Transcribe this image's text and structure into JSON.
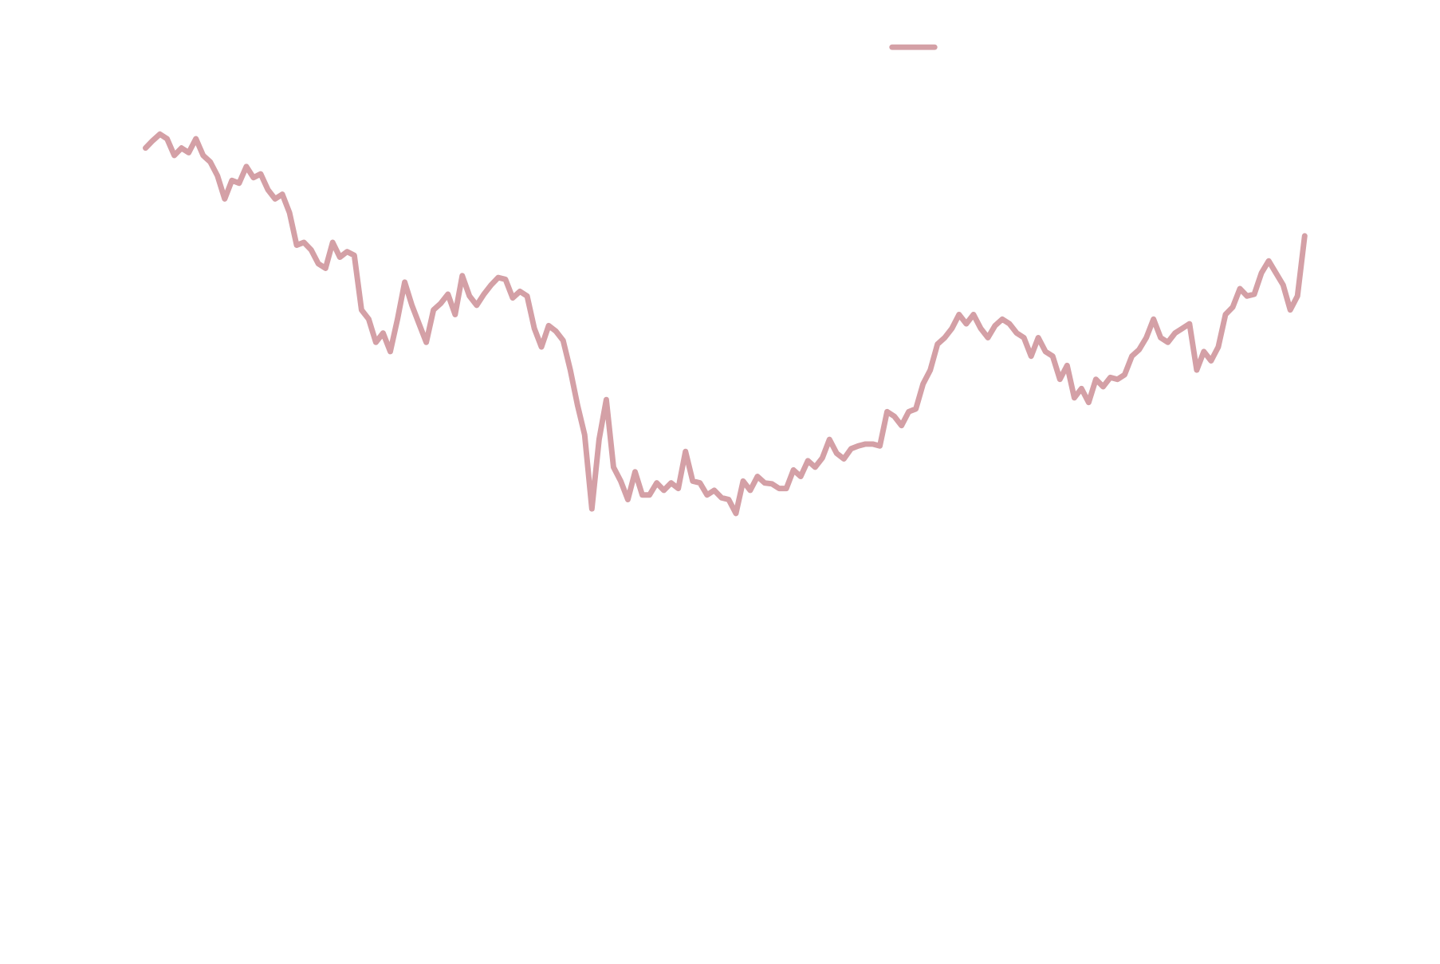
{
  "chart_data": {
    "type": "line",
    "color": "#d4a0a6",
    "ylim": [
      0,
      100
    ],
    "legend": "top",
    "values": [
      84,
      84.8,
      85.5,
      85,
      83.2,
      84,
      83.5,
      85,
      83.2,
      82.5,
      81,
      78.5,
      80.5,
      80.2,
      82,
      80.8,
      81.2,
      79.5,
      78.5,
      79,
      77,
      73.5,
      73.8,
      73,
      71.5,
      71,
      73.8,
      72.2,
      72.8,
      72.4,
      66.5,
      65.5,
      63,
      64,
      62,
      65.5,
      69.5,
      67,
      65,
      63,
      66.5,
      67.2,
      68.2,
      66,
      70.2,
      68,
      67,
      68.2,
      69.2,
      70,
      69.8,
      67.8,
      68.5,
      68,
      64.5,
      62.5,
      64.8,
      64.2,
      63.2,
      60,
      56.2,
      53,
      45,
      52.5,
      56.8,
      49.5,
      48,
      46,
      49,
      46.5,
      46.5,
      47.8,
      47,
      47.8,
      47.2,
      51.2,
      48,
      47.8,
      46.5,
      47,
      46.2,
      46,
      44.5,
      48,
      47,
      48.5,
      47.8,
      47.7,
      47.2,
      47.2,
      49.2,
      48.5,
      50.2,
      49.5,
      50.5,
      52.5,
      51,
      50.4,
      51.5,
      51.8,
      52,
      52,
      51.8,
      55.5,
      55,
      54,
      55.5,
      55.8,
      58.5,
      60,
      62.8,
      63.5,
      64.5,
      66,
      65,
      66,
      64.5,
      63.5,
      64.8,
      65.5,
      65,
      64,
      63.5,
      61.5,
      63.5,
      62,
      61.5,
      59,
      60.5,
      57,
      58,
      56.5,
      59,
      58.2,
      59.2,
      59,
      59.5,
      61.5,
      62.2,
      63.5,
      65.5,
      63.5,
      63,
      64,
      64.5,
      65,
      60,
      62,
      61,
      62.5,
      66,
      66.8,
      68.8,
      68,
      68.2,
      70.5,
      71.8,
      70.5,
      69.2,
      66.5,
      68,
      74.5
    ]
  }
}
